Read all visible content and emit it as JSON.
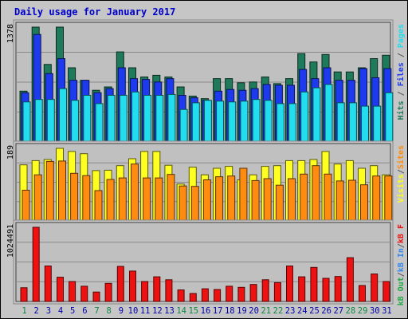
{
  "chart_data": {
    "type": "bar",
    "title": "Daily usage for January 2017",
    "categories": [
      "1",
      "2",
      "3",
      "4",
      "5",
      "6",
      "7",
      "8",
      "9",
      "10",
      "11",
      "12",
      "13",
      "14",
      "15",
      "16",
      "17",
      "18",
      "19",
      "20",
      "21",
      "22",
      "23",
      "24",
      "25",
      "26",
      "27",
      "28",
      "29",
      "30",
      "31"
    ],
    "weekend_days": [
      1,
      7,
      8,
      14,
      15,
      21,
      22,
      28,
      29
    ],
    "colors": {
      "title": "#0000cc",
      "hits": "#1e7a5a",
      "files": "#1e3aee",
      "pages": "#22ddee",
      "visits": "#ffff22",
      "sites": "#ff8c11",
      "kbf": "#ee1111",
      "kbin": "#3388ee",
      "kbout": "#22aa44",
      "weekday_label": "#0000aa",
      "weekend_label": "#118844"
    },
    "panels": [
      {
        "id": "hits-files-pages",
        "max_label": "1378",
        "ymax": 1378,
        "legend": [
          {
            "text": "Pages",
            "color": "#22ddee"
          },
          {
            "text": "Files",
            "color": "#1e3aee"
          },
          {
            "text": "Hits",
            "color": "#1e7a5a"
          }
        ],
        "series": [
          {
            "name": "Hits",
            "color": "#1e7a5a",
            "values": [
              610,
              1378,
              930,
              1378,
              890,
              740,
              620,
              660,
              1080,
              890,
              780,
              800,
              780,
              660,
              550,
              520,
              760,
              760,
              710,
              720,
              780,
              700,
              760,
              1060,
              960,
              1050,
              840,
              840,
              890,
              1000,
              1040
            ]
          },
          {
            "name": "Files",
            "color": "#1e3aee",
            "values": [
              590,
              1290,
              820,
              1000,
              740,
              740,
              590,
              640,
              890,
              760,
              750,
              720,
              760,
              560,
              530,
              500,
              610,
              630,
              620,
              640,
              690,
              680,
              680,
              870,
              760,
              890,
              740,
              740,
              880,
              770,
              880
            ]
          },
          {
            "name": "Pages",
            "color": "#22ddee",
            "values": [
              480,
              510,
              510,
              640,
              500,
              560,
              460,
              560,
              560,
              600,
              560,
              560,
              570,
              390,
              470,
              500,
              490,
              480,
              490,
              510,
              500,
              460,
              460,
              600,
              650,
              690,
              470,
              470,
              430,
              430,
              590
            ]
          }
        ]
      },
      {
        "id": "visits-sites",
        "max_label": "189",
        "ymax": 189,
        "legend": [
          {
            "text": "Sites",
            "color": "#ff8c11"
          },
          {
            "text": "/",
            "color": "#555555"
          },
          {
            "text": "Visits",
            "color": "#ffff22"
          }
        ],
        "series": [
          {
            "name": "Visits",
            "color": "#ffff22",
            "values": [
              146,
              157,
              160,
              189,
              181,
              175,
              131,
              132,
              144,
              162,
              181,
              181,
              145,
              96,
              140,
              120,
              137,
              142,
              107,
              120,
              142,
              144,
              157,
              157,
              160,
              181,
              148,
              157,
              137,
              144,
              120
            ]
          },
          {
            "name": "Sites",
            "color": "#ff8c11",
            "values": [
              80,
              120,
              155,
              156,
              124,
              118,
              79,
              108,
              112,
              148,
              112,
              112,
              121,
              91,
              90,
              107,
              115,
              117,
              137,
              105,
              110,
              93,
              110,
              122,
              144,
              122,
              104,
              106,
              94,
              117,
              117
            ]
          }
        ]
      },
      {
        "id": "kbytes",
        "max_label": "1024491",
        "ymax": 1024491,
        "legend": [
          {
            "text": "kB F",
            "color": "#ee1111"
          },
          {
            "text": "/",
            "color": "#555555"
          },
          {
            "text": "kB In",
            "color": "#3388ee"
          },
          {
            "text": "/",
            "color": "#555555"
          },
          {
            "text": "kB Out",
            "color": "#22aa44"
          }
        ],
        "series": [
          {
            "name": "kB F",
            "color": "#ee1111",
            "values": [
              190000,
              1024491,
              490000,
              335000,
              275000,
              210000,
              130000,
              250000,
              485000,
              420000,
              275000,
              340000,
              300000,
              160000,
              110000,
              175000,
              165000,
              210000,
              195000,
              235000,
              300000,
              260000,
              490000,
              340000,
              470000,
              320000,
              345000,
              605000,
              220000,
              380000,
              275000
            ]
          }
        ]
      }
    ]
  }
}
